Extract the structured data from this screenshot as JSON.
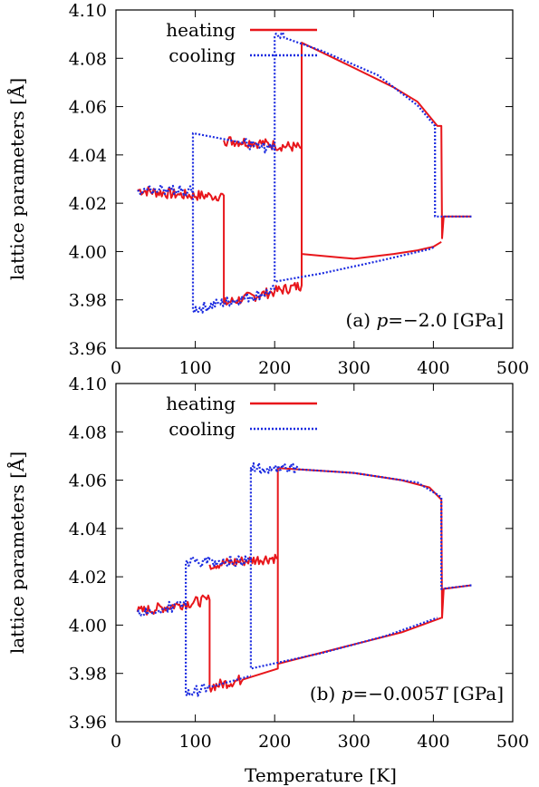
{
  "chart_data": [
    {
      "type": "line",
      "panel": "top",
      "annotation": {
        "prefix": "(a) ",
        "var": "p",
        "rest": "=−2.0 [GPa]"
      },
      "xlabel": "",
      "ylabel": "lattice parameters [Å]",
      "xlim": [
        0,
        500
      ],
      "ylim": [
        3.96,
        4.1
      ],
      "xticks": [
        "0",
        "100",
        "200",
        "300",
        "400",
        "500"
      ],
      "yticks": [
        "3.96",
        "3.98",
        "4.00",
        "4.02",
        "4.04",
        "4.06",
        "4.08",
        "4.10"
      ],
      "legend_position": "top-left",
      "series": [
        {
          "name": "heating",
          "color": "#e8161b",
          "style": "solid",
          "branches": [
            [
              [
                27,
                4.0255
              ],
              [
                80,
                4.0235
              ],
              [
                120,
                4.023
              ],
              [
                136,
                4.0232
              ],
              [
                136,
                3.9785
              ],
              [
                160,
                3.9805
              ],
              [
                200,
                3.9835
              ],
              [
                234,
                3.986
              ],
              [
                234,
                4.0865
              ],
              [
                300,
                4.076
              ],
              [
                350,
                4.068
              ],
              [
                380,
                4.062
              ],
              [
                405,
                4.052
              ],
              [
                410,
                4.052
              ],
              [
                411,
                4.0055
              ],
              [
                413,
                4.0145
              ],
              [
                448,
                4.0145
              ]
            ],
            [
              [
                136,
                4.046
              ],
              [
                180,
                4.045
              ],
              [
                200,
                4.044
              ],
              [
                234,
                4.043
              ]
            ],
            [
              [
                234,
                3.999
              ],
              [
                300,
                3.997
              ],
              [
                350,
                3.999
              ],
              [
                380,
                4.0005
              ],
              [
                400,
                4.002
              ],
              [
                410,
                4.004
              ]
            ]
          ]
        },
        {
          "name": "cooling",
          "color": "#1b2be0",
          "style": "dotted",
          "branches": [
            [
              [
                448,
                4.0145
              ],
              [
                402,
                4.0145
              ],
              [
                402,
                4.052
              ],
              [
                380,
                4.0605
              ],
              [
                330,
                4.073
              ],
              [
                260,
                4.083
              ],
              [
                212,
                4.0885
              ],
              [
                200,
                4.089
              ],
              [
                200,
                3.9875
              ],
              [
                260,
                3.991
              ],
              [
                330,
                3.996
              ],
              [
                395,
                4.001
              ],
              [
                402,
                4.002
              ]
            ],
            [
              [
                200,
                4.042
              ],
              [
                160,
                4.045
              ],
              [
                97,
                4.049
              ],
              [
                97,
                3.976
              ],
              [
                130,
                3.9785
              ],
              [
                160,
                3.9805
              ],
              [
                200,
                3.984
              ]
            ],
            [
              [
                97,
                4.025
              ],
              [
                60,
                4.0255
              ],
              [
                27,
                4.0255
              ]
            ]
          ]
        }
      ]
    },
    {
      "type": "line",
      "panel": "bottom",
      "annotation": {
        "prefix": "(b) ",
        "var": "p",
        "rest": "=−0.005",
        "var2": "T",
        "rest2": " [GPa]"
      },
      "xlabel": "Temperature [K]",
      "ylabel": "lattice parameters [Å]",
      "xlim": [
        0,
        500
      ],
      "ylim": [
        3.96,
        4.1
      ],
      "xticks": [
        "0",
        "100",
        "200",
        "300",
        "400",
        "500"
      ],
      "yticks": [
        "3.96",
        "3.98",
        "4.00",
        "4.02",
        "4.04",
        "4.06",
        "4.08",
        "4.10"
      ],
      "legend_position": "top-left",
      "series": [
        {
          "name": "heating",
          "color": "#e8161b",
          "style": "solid",
          "branches": [
            [
              [
                27,
                4.0055
              ],
              [
                80,
                4.0085
              ],
              [
                118,
                4.0105
              ],
              [
                118,
                3.9745
              ],
              [
                160,
                3.9775
              ],
              [
                204,
                3.982
              ],
              [
                204,
                4.065
              ],
              [
                300,
                4.063
              ],
              [
                360,
                4.06
              ],
              [
                395,
                4.057
              ],
              [
                410,
                4.052
              ],
              [
                411,
                4.003
              ],
              [
                413,
                4.015
              ],
              [
                448,
                4.0165
              ]
            ],
            [
              [
                118,
                4.025
              ],
              [
                160,
                4.0265
              ],
              [
                204,
                4.028
              ]
            ],
            [
              [
                204,
                3.984
              ],
              [
                300,
                3.992
              ],
              [
                360,
                3.997
              ],
              [
                410,
                4.003
              ]
            ]
          ]
        },
        {
          "name": "cooling",
          "color": "#1b2be0",
          "style": "dotted",
          "branches": [
            [
              [
                448,
                4.0165
              ],
              [
                410,
                4.015
              ],
              [
                410,
                4.053
              ],
              [
                380,
                4.059
              ],
              [
                300,
                4.063
              ],
              [
                230,
                4.0645
              ],
              [
                170,
                4.065
              ],
              [
                170,
                3.982
              ],
              [
                260,
                3.9885
              ],
              [
                340,
                3.9955
              ],
              [
                405,
                4.003
              ]
            ],
            [
              [
                170,
                4.027
              ],
              [
                130,
                4.0265
              ],
              [
                88,
                4.026
              ],
              [
                88,
                3.9715
              ],
              [
                120,
                3.9745
              ],
              [
                170,
                3.979
              ]
            ],
            [
              [
                88,
                4.0085
              ],
              [
                60,
                4.007
              ],
              [
                27,
                4.0055
              ]
            ]
          ]
        }
      ]
    }
  ]
}
